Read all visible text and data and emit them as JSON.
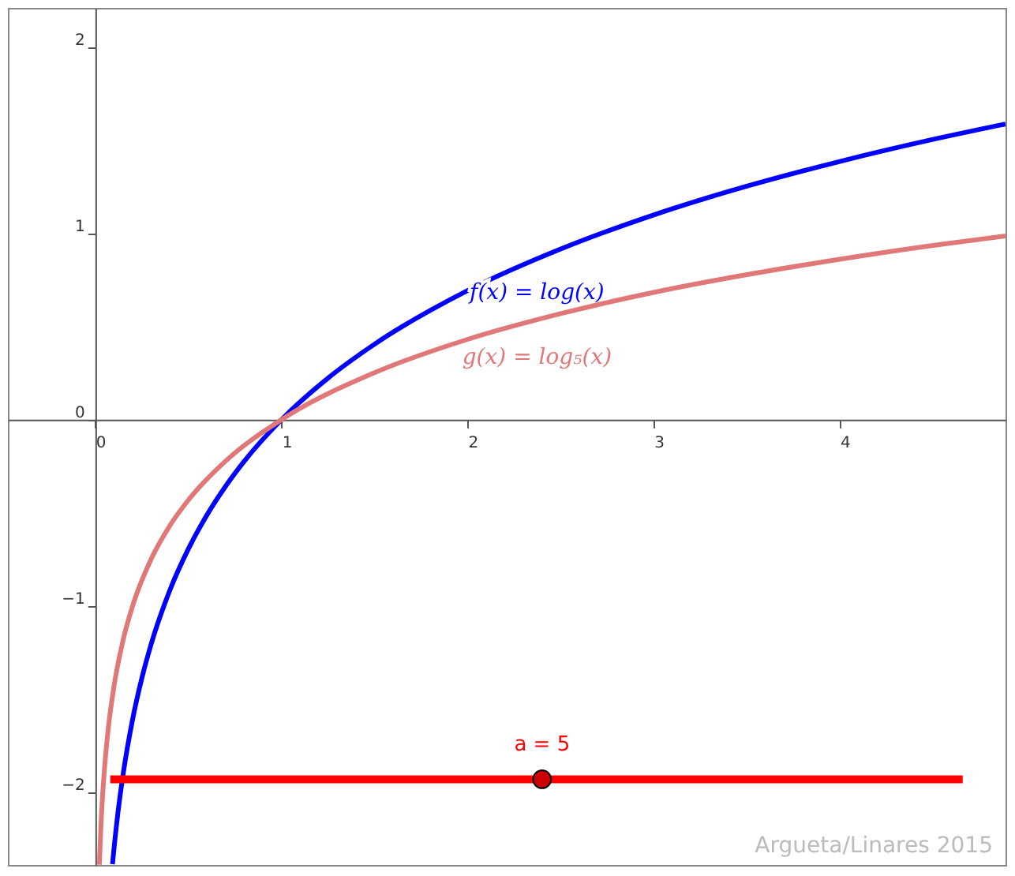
{
  "chart_data": {
    "type": "line",
    "xlim": [
      -0.47,
      4.89
    ],
    "ylim": [
      -2.39,
      2.21
    ],
    "xticks": [
      0,
      1,
      2,
      3,
      4
    ],
    "yticks": [
      -2,
      -1,
      0,
      1,
      2
    ],
    "grid": false,
    "line_style": "solid",
    "marker": "none",
    "series": [
      {
        "name": "f(x) = log(x)",
        "color": "#0000ff",
        "x": [
          0.092,
          0.1,
          0.12,
          0.15,
          0.2,
          0.25,
          0.3,
          0.4,
          0.5,
          0.6,
          0.7,
          0.8,
          1,
          1.25,
          1.5,
          2,
          2.5,
          3,
          3.5,
          4,
          4.5,
          4.89
        ],
        "values": [
          -2.386,
          -2.303,
          -2.12,
          -1.897,
          -1.609,
          -1.386,
          -1.204,
          -0.916,
          -0.693,
          -0.511,
          -0.357,
          -0.223,
          0,
          0.223,
          0.405,
          0.693,
          0.916,
          1.099,
          1.253,
          1.386,
          1.504,
          1.587
        ]
      },
      {
        "name": "g(x) = log₅(x)",
        "color": "#e07878",
        "x": [
          0.0214,
          0.03,
          0.04,
          0.05,
          0.07,
          0.1,
          0.15,
          0.2,
          0.3,
          0.4,
          0.5,
          0.7,
          1,
          1.5,
          2,
          2.5,
          3,
          3.5,
          4,
          4.5,
          4.89
        ],
        "values": [
          -2.388,
          -2.179,
          -2.0,
          -1.861,
          -1.652,
          -1.431,
          -1.179,
          -1.0,
          -0.748,
          -0.569,
          -0.431,
          -0.222,
          0,
          0.252,
          0.431,
          0.569,
          0.683,
          0.778,
          0.861,
          0.935,
          0.986
        ]
      },
      {
        "color": "#ff0000",
        "x": [
          0.08,
          4.66
        ],
        "values": [
          -1.93,
          -1.93
        ]
      },
      {
        "type": "scatter",
        "marker": "circle",
        "color": "#cc0000",
        "x": [
          2.4
        ],
        "values": [
          -1.93
        ]
      }
    ],
    "annotations": [
      {
        "text": "a = 5",
        "x": 2.4,
        "y": -1.93
      },
      "Argueta/Linares 2015"
    ]
  }
}
